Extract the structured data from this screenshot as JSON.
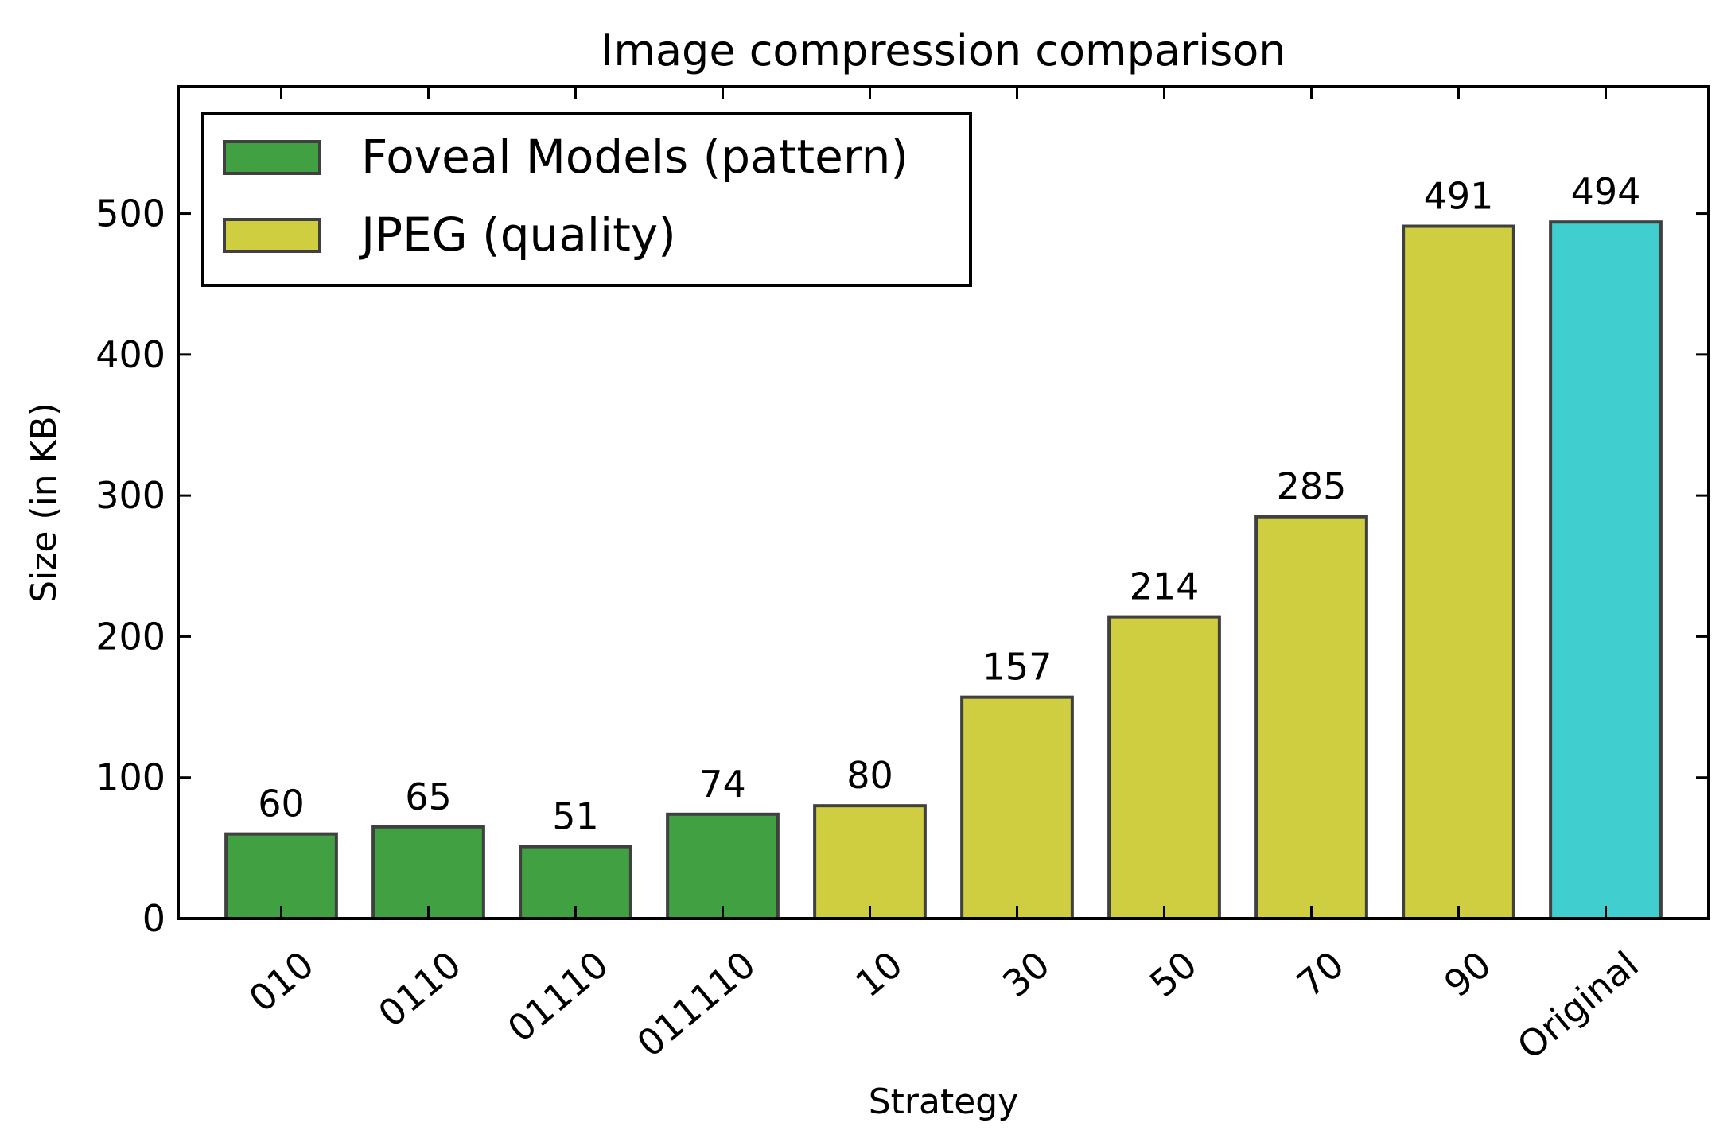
{
  "chart_data": {
    "type": "bar",
    "title": "Image compression comparison",
    "xlabel": "Strategy",
    "ylabel": "Size (in KB)",
    "ylim": [
      0,
      590
    ],
    "yticks": [
      0,
      100,
      200,
      300,
      400,
      500
    ],
    "grid": false,
    "legend_position": "top-left",
    "categories": [
      "010",
      "0110",
      "01110",
      "011110",
      "10",
      "30",
      "50",
      "70",
      "90",
      "Original"
    ],
    "values": [
      60,
      65,
      51,
      74,
      80,
      157,
      214,
      285,
      491,
      494
    ],
    "groups": [
      "Foveal Models (pattern)",
      "Foveal Models (pattern)",
      "Foveal Models (pattern)",
      "Foveal Models (pattern)",
      "JPEG (quality)",
      "JPEG (quality)",
      "JPEG (quality)",
      "JPEG (quality)",
      "JPEG (quality)",
      "Original"
    ],
    "legend": [
      {
        "label": "Foveal Models (pattern)",
        "color": "#41a041"
      },
      {
        "label": "JPEG (quality)",
        "color": "#cfce41"
      }
    ],
    "colors": {
      "Foveal Models (pattern)": "#41a041",
      "JPEG (quality)": "#cfce41",
      "Original": "#41cece",
      "edge": "#404040"
    }
  }
}
